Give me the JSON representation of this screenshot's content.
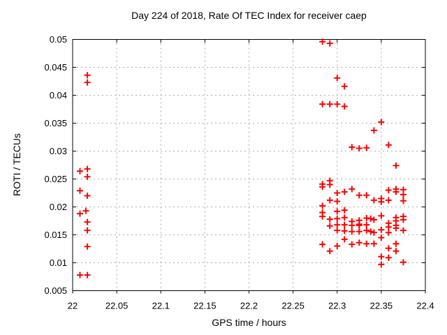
{
  "chart_data": {
    "type": "scatter",
    "title": "Day 224 of 2018, Rate Of TEC Index for receiver caep",
    "xlabel": "GPS time / hours",
    "ylabel": "ROTI / TECUs",
    "xlim": [
      22,
      22.4
    ],
    "ylim": [
      0.005,
      0.05
    ],
    "grid": true,
    "legend_position": "none",
    "x_ticks": {
      "values": [
        22,
        22.05,
        22.1,
        22.15,
        22.2,
        22.25,
        22.3,
        22.35,
        22.4
      ],
      "labels": [
        "22",
        "22.05",
        "22.1",
        "22.15",
        "22.2",
        "22.25",
        "22.3",
        "22.35",
        "22.4"
      ]
    },
    "y_ticks": {
      "values": [
        0.005,
        0.01,
        0.015,
        0.02,
        0.025,
        0.03,
        0.035,
        0.04,
        0.045,
        0.05
      ],
      "labels": [
        "0.005",
        "0.01",
        "0.015",
        "0.02",
        "0.025",
        "0.03",
        "0.035",
        "0.04",
        "0.045",
        "0.05"
      ]
    },
    "marker": {
      "shape": "plus",
      "color": "#ff0000",
      "size": 9,
      "stroke_width": 2
    },
    "colors": {
      "background": "#ffffff",
      "plot_border": "#000000",
      "gridline": "#aaaaaa",
      "text": "#000000"
    },
    "series": [
      {
        "name": "ROTI",
        "points": [
          [
            22.0083,
            0.0264
          ],
          [
            22.0083,
            0.0229
          ],
          [
            22.0083,
            0.0188
          ],
          [
            22.0083,
            0.0078
          ],
          [
            22.015,
            0.0193
          ],
          [
            22.0167,
            0.0436
          ],
          [
            22.0167,
            0.0423
          ],
          [
            22.0167,
            0.0268
          ],
          [
            22.0167,
            0.0254
          ],
          [
            22.0167,
            0.022
          ],
          [
            22.0167,
            0.0173
          ],
          [
            22.0167,
            0.0158
          ],
          [
            22.0167,
            0.0129
          ],
          [
            22.0167,
            0.0078
          ],
          [
            22.2833,
            0.0496
          ],
          [
            22.2833,
            0.0384
          ],
          [
            22.2833,
            0.0241
          ],
          [
            22.2833,
            0.0236
          ],
          [
            22.2833,
            0.0202
          ],
          [
            22.2833,
            0.019
          ],
          [
            22.2833,
            0.0183
          ],
          [
            22.2833,
            0.0133
          ],
          [
            22.2917,
            0.0493
          ],
          [
            22.2917,
            0.0384
          ],
          [
            22.2917,
            0.0247
          ],
          [
            22.2917,
            0.024
          ],
          [
            22.2917,
            0.0212
          ],
          [
            22.2917,
            0.0178
          ],
          [
            22.2917,
            0.0166
          ],
          [
            22.2917,
            0.0121
          ],
          [
            22.3,
            0.0431
          ],
          [
            22.3,
            0.0384
          ],
          [
            22.3,
            0.0225
          ],
          [
            22.3,
            0.021
          ],
          [
            22.3,
            0.0192
          ],
          [
            22.3,
            0.0179
          ],
          [
            22.3,
            0.0168
          ],
          [
            22.3,
            0.0158
          ],
          [
            22.3,
            0.013
          ],
          [
            22.3083,
            0.0416
          ],
          [
            22.3083,
            0.038
          ],
          [
            22.3083,
            0.0227
          ],
          [
            22.3083,
            0.0194
          ],
          [
            22.3083,
            0.0181
          ],
          [
            22.3083,
            0.0168
          ],
          [
            22.3083,
            0.0157
          ],
          [
            22.3083,
            0.0142
          ],
          [
            22.3167,
            0.0307
          ],
          [
            22.3167,
            0.0232
          ],
          [
            22.3167,
            0.0174
          ],
          [
            22.3167,
            0.0167
          ],
          [
            22.3167,
            0.0156
          ],
          [
            22.3167,
            0.0133
          ],
          [
            22.325,
            0.0305
          ],
          [
            22.325,
            0.0221
          ],
          [
            22.325,
            0.0176
          ],
          [
            22.325,
            0.0169
          ],
          [
            22.325,
            0.0167
          ],
          [
            22.325,
            0.0156
          ],
          [
            22.325,
            0.0136
          ],
          [
            22.3333,
            0.0306
          ],
          [
            22.3333,
            0.0221
          ],
          [
            22.3333,
            0.018
          ],
          [
            22.3333,
            0.0168
          ],
          [
            22.3333,
            0.0158
          ],
          [
            22.3333,
            0.0134
          ],
          [
            22.338,
            0.0179
          ],
          [
            22.338,
            0.0156
          ],
          [
            22.3417,
            0.0337
          ],
          [
            22.3417,
            0.0212
          ],
          [
            22.3417,
            0.0177
          ],
          [
            22.3417,
            0.0154
          ],
          [
            22.3417,
            0.0134
          ],
          [
            22.35,
            0.0352
          ],
          [
            22.35,
            0.0215
          ],
          [
            22.35,
            0.0209
          ],
          [
            22.35,
            0.0184
          ],
          [
            22.35,
            0.0159
          ],
          [
            22.35,
            0.0145
          ],
          [
            22.35,
            0.0111
          ],
          [
            22.35,
            0.0097
          ],
          [
            22.3583,
            0.0311
          ],
          [
            22.3583,
            0.023
          ],
          [
            22.3583,
            0.0212
          ],
          [
            22.3583,
            0.0171
          ],
          [
            22.3583,
            0.0164
          ],
          [
            22.3583,
            0.0154
          ],
          [
            22.3583,
            0.0126
          ],
          [
            22.3583,
            0.0109
          ],
          [
            22.3667,
            0.0274
          ],
          [
            22.3667,
            0.0232
          ],
          [
            22.3667,
            0.0227
          ],
          [
            22.3667,
            0.0181
          ],
          [
            22.3667,
            0.0175
          ],
          [
            22.3667,
            0.0167
          ],
          [
            22.3667,
            0.0162
          ],
          [
            22.3667,
            0.0134
          ],
          [
            22.3667,
            0.0121
          ],
          [
            22.375,
            0.0231
          ],
          [
            22.375,
            0.0222
          ],
          [
            22.375,
            0.0211
          ],
          [
            22.375,
            0.0183
          ],
          [
            22.375,
            0.0177
          ],
          [
            22.375,
            0.0158
          ],
          [
            22.375,
            0.0101
          ]
        ]
      }
    ]
  }
}
